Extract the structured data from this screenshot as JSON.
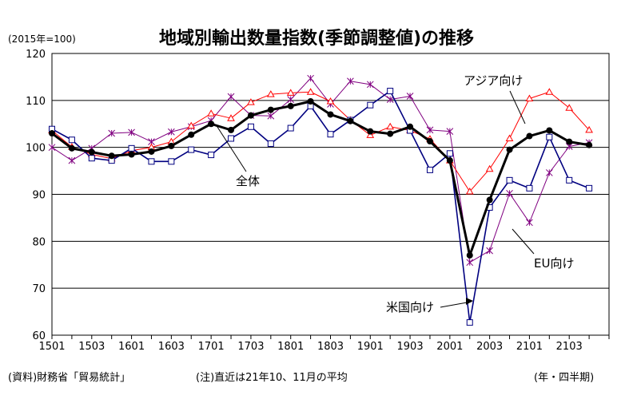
{
  "header": {
    "title": "地域別輸出数量指数(季節調整値)の推移",
    "unit": "(2015年=100)"
  },
  "footer": {
    "source": "(資料)財務省「貿易統計」",
    "note": "(注)直近は21年10、11月の平均",
    "period": "(年・四半期)"
  },
  "chart_data": {
    "type": "line",
    "title": "地域別輸出数量指数(季節調整値)の推移",
    "ylabel": "(2015年=100)",
    "xlabel": "(年・四半期)",
    "ylim": [
      60,
      120
    ],
    "yticks": [
      60,
      70,
      80,
      90,
      100,
      110,
      120
    ],
    "grid": true,
    "x": [
      "1501",
      "1502",
      "1503",
      "1504",
      "1601",
      "1602",
      "1603",
      "1604",
      "1701",
      "1702",
      "1703",
      "1704",
      "1801",
      "1802",
      "1803",
      "1804",
      "1901",
      "1902",
      "1903",
      "1904",
      "2001",
      "2002",
      "2003",
      "2004",
      "2101",
      "2102",
      "2103",
      "2104"
    ],
    "xtick_labels": [
      "1501",
      "1503",
      "1601",
      "1603",
      "1701",
      "1703",
      "1801",
      "1803",
      "1901",
      "1903",
      "2001",
      "2003",
      "2101",
      "2103"
    ],
    "series": [
      {
        "name": "全体",
        "color": "#000000",
        "marker": "filled-circle",
        "values": [
          103.0,
          99.8,
          99.0,
          98.2,
          98.5,
          99.1,
          100.3,
          102.7,
          105.0,
          103.7,
          106.8,
          108.0,
          108.8,
          109.8,
          107.0,
          105.6,
          103.4,
          102.9,
          104.4,
          101.3,
          97.2,
          77.0,
          88.8,
          99.5,
          102.4,
          103.6,
          101.2,
          100.5
        ]
      },
      {
        "name": "アジア向け",
        "color": "#ff0000",
        "marker": "open-triangle",
        "values": [
          103.6,
          100.1,
          98.5,
          97.6,
          99.3,
          100.0,
          101.2,
          104.6,
          107.2,
          106.2,
          109.6,
          111.3,
          111.6,
          111.8,
          109.8,
          105.8,
          102.6,
          104.4,
          103.6,
          101.8,
          97.2,
          90.6,
          95.4,
          101.9,
          110.4,
          111.8,
          108.4,
          103.7
        ]
      },
      {
        "name": "EU向け",
        "color": "#800080",
        "marker": "cross",
        "values": [
          100.0,
          97.2,
          99.8,
          103.0,
          103.2,
          101.2,
          103.3,
          104.4,
          105.7,
          110.8,
          106.8,
          106.7,
          110.2,
          114.7,
          109.2,
          114.1,
          113.4,
          110.2,
          110.9,
          103.7,
          103.4,
          75.5,
          78.0,
          90.2,
          84.0,
          94.6,
          100.2,
          101.0
        ]
      },
      {
        "name": "米国向け",
        "color": "#000080",
        "marker": "open-square",
        "values": [
          103.9,
          101.6,
          97.7,
          97.2,
          99.8,
          97.0,
          97.0,
          99.5,
          98.4,
          101.9,
          104.4,
          100.8,
          104.1,
          108.8,
          102.8,
          105.8,
          109.0,
          112.0,
          103.6,
          95.2,
          98.7,
          62.7,
          87.2,
          93.0,
          91.3,
          102.2,
          93.0,
          91.3
        ]
      }
    ],
    "annotations": [
      "アジア向け",
      "全体",
      "EU向け",
      "米国向け"
    ]
  }
}
